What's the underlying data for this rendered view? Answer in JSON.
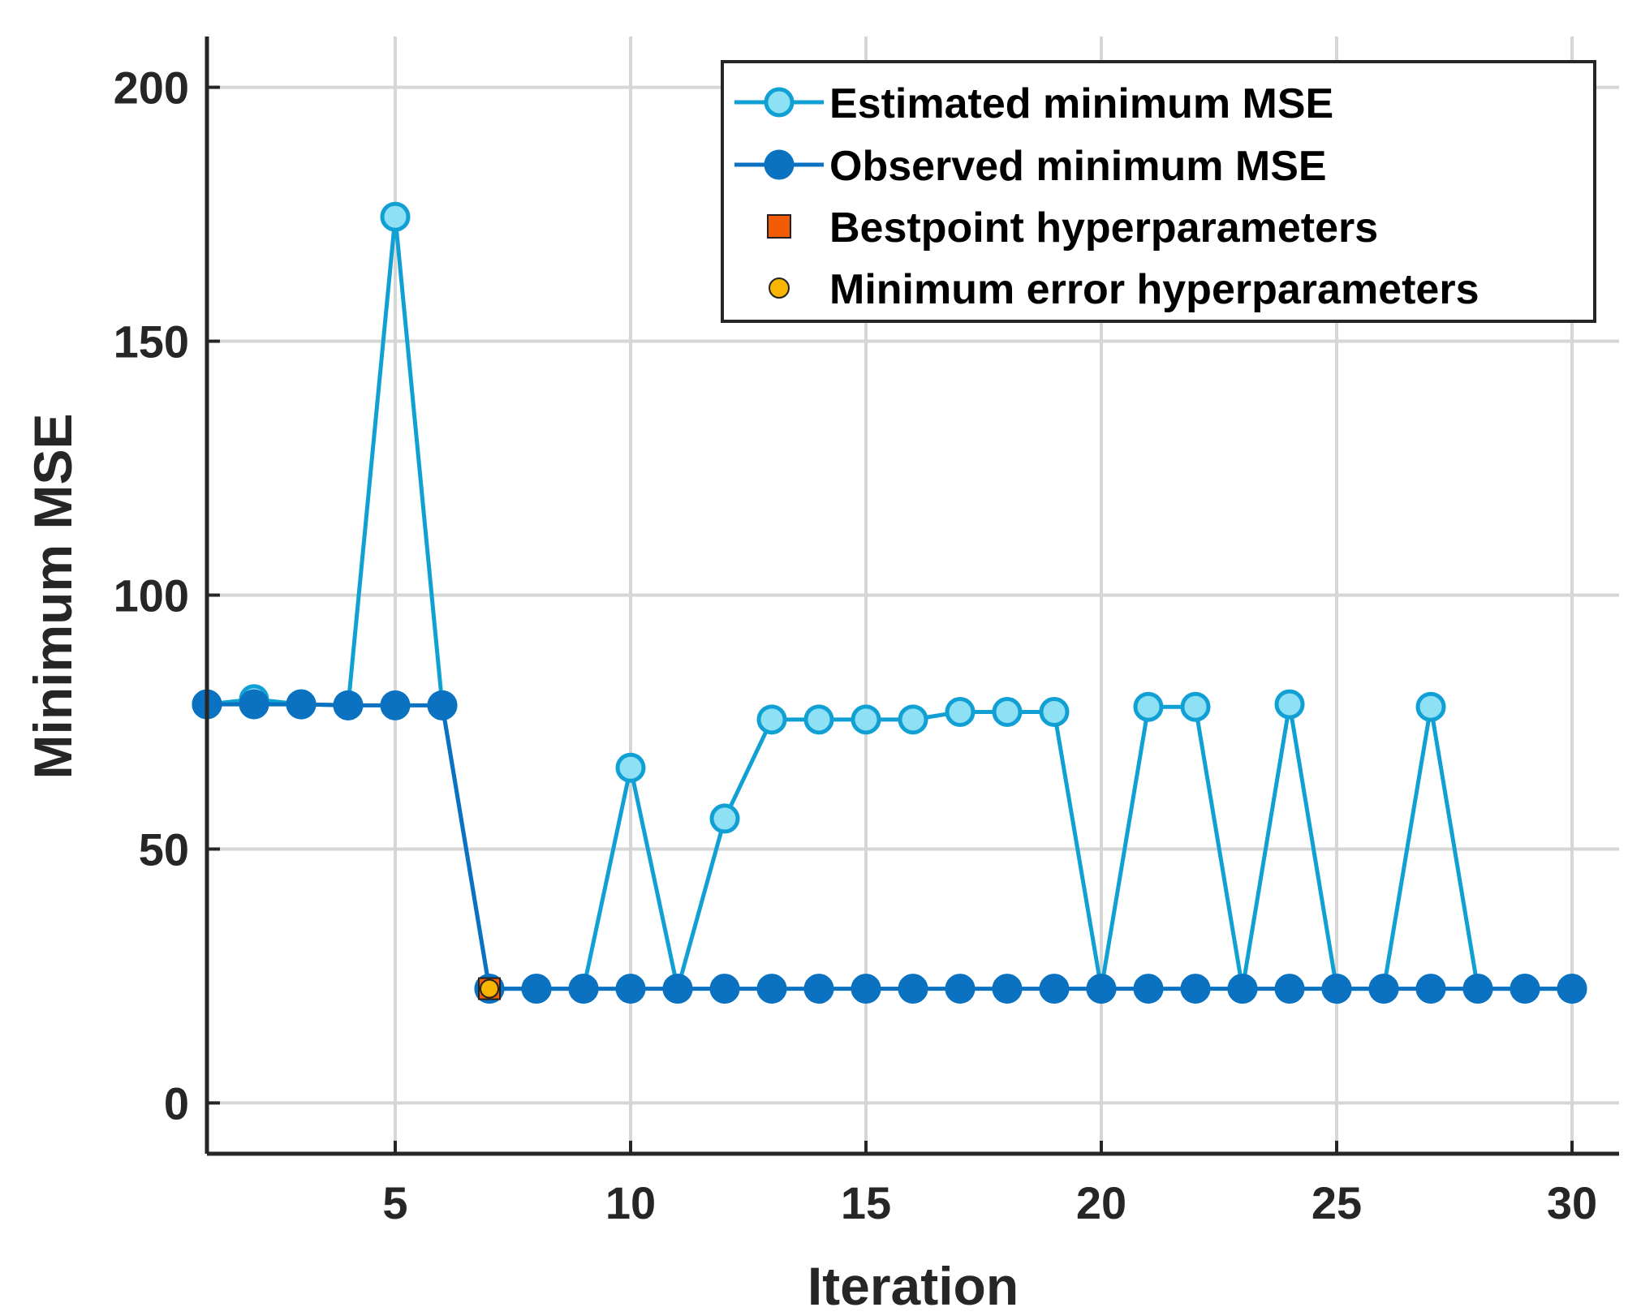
{
  "chart_data": {
    "type": "line",
    "xlabel": "Iteration",
    "ylabel": "Minimum MSE",
    "xlim": [
      1,
      31
    ],
    "ylim": [
      -10,
      210
    ],
    "xticks": [
      5,
      10,
      15,
      20,
      25,
      30
    ],
    "yticks": [
      0,
      50,
      100,
      150,
      200
    ],
    "grid": true,
    "legend_position": "top-right",
    "x": [
      1,
      2,
      3,
      4,
      5,
      6,
      7,
      8,
      9,
      10,
      11,
      12,
      13,
      14,
      15,
      16,
      17,
      18,
      19,
      20,
      21,
      22,
      23,
      24,
      25,
      26,
      27,
      28,
      29,
      30
    ],
    "series": [
      {
        "name": "Estimated minimum MSE",
        "color": "#11a0d4",
        "marker_fill": "#8ee0f5",
        "values": [
          78.5,
          79.5,
          78.5,
          78.3,
          174.5,
          78.3,
          22.5,
          22.5,
          22.5,
          66.0,
          22.5,
          56.0,
          75.5,
          75.5,
          75.5,
          75.5,
          77.0,
          77.0,
          77.0,
          22.5,
          78.0,
          78.0,
          22.5,
          78.5,
          22.5,
          22.5,
          78.0,
          22.5,
          22.5,
          22.5
        ]
      },
      {
        "name": "Observed minimum MSE",
        "color": "#0a72c0",
        "marker_fill": "#0a72c0",
        "values": [
          78.5,
          78.5,
          78.5,
          78.3,
          78.3,
          78.3,
          22.5,
          22.5,
          22.5,
          22.5,
          22.5,
          22.5,
          22.5,
          22.5,
          22.5,
          22.5,
          22.5,
          22.5,
          22.5,
          22.5,
          22.5,
          22.5,
          22.5,
          22.5,
          22.5,
          22.5,
          22.5,
          22.5,
          22.5,
          22.5
        ]
      }
    ],
    "points": [
      {
        "name": "Bestpoint hyperparameters",
        "x": 7,
        "y": 22.5,
        "marker": "square",
        "color": "#f25c05"
      },
      {
        "name": "Minimum error hyperparameters",
        "x": 7,
        "y": 22.5,
        "marker": "circle",
        "color": "#f7b500"
      }
    ]
  }
}
